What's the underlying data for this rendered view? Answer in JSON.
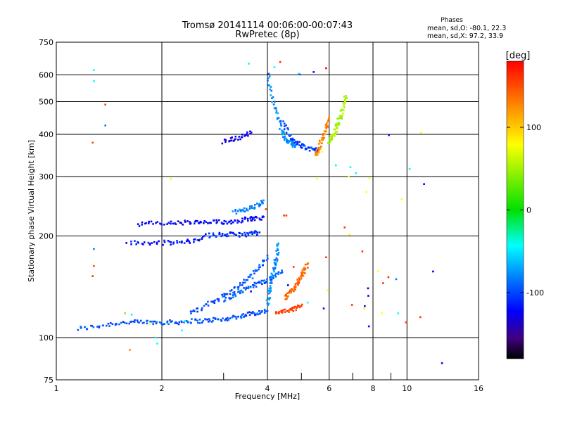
{
  "chart_data": {
    "type": "scatter",
    "title": "Tromsø 20141114 00:06:00-00:07:43",
    "subtitle": "RwPretec (8p)",
    "xlabel": "Frequency [MHz]",
    "ylabel": "Stationary phase Virtual Height [km]",
    "x_scale": "log",
    "y_scale": "log",
    "xlim": [
      1,
      16
    ],
    "ylim": [
      75,
      750
    ],
    "x_ticks": [
      1,
      2,
      4,
      6,
      8,
      10,
      16
    ],
    "x_minor_ticks": [
      3,
      5,
      7,
      9
    ],
    "y_ticks": [
      75,
      100,
      200,
      300,
      400,
      500,
      600,
      750
    ],
    "grid": true,
    "phases": {
      "title": "Phases",
      "line_o": "mean, sd,O: -80.1, 22.3",
      "line_x": "mean, sd,X:  97.2, 33.9"
    },
    "colorbar": {
      "label": "[deg]",
      "range": [
        -180,
        180
      ],
      "ticks": [
        100,
        0,
        -100
      ],
      "colors": [
        "#ff0000",
        "#ff8000",
        "#ffff00",
        "#00e000",
        "#00ffff",
        "#0070ff",
        "#0000ff",
        "#400080",
        "#000000"
      ]
    },
    "traces": [
      {
        "name": "",
        "phase": -75,
        "x": [
          1.15,
          1.3,
          1.45,
          1.6,
          1.75,
          1.9,
          2.05,
          2.2,
          2.4,
          2.6,
          2.8,
          3.0,
          3.2,
          3.4,
          3.6,
          3.8,
          4.0
        ],
        "y": [
          106,
          108,
          110,
          111,
          111,
          111,
          111,
          111,
          112,
          112,
          113,
          113,
          115,
          116,
          118,
          119,
          120
        ]
      },
      {
        "name": "",
        "phase": -75,
        "x": [
          2.4,
          2.6,
          2.8,
          3.0,
          3.2,
          3.4,
          3.6,
          3.8,
          4.0
        ],
        "y": [
          118,
          122,
          128,
          133,
          138,
          145,
          152,
          162,
          175
        ]
      },
      {
        "name": "",
        "phase": -70,
        "x": [
          3.0,
          3.2,
          3.4,
          3.6,
          3.8,
          4.0,
          4.2,
          4.4
        ],
        "y": [
          128,
          133,
          138,
          142,
          145,
          148,
          152,
          158
        ]
      },
      {
        "name": "",
        "phase": -95,
        "x": [
          1.6,
          1.8,
          2.0,
          2.2,
          2.4,
          2.6
        ],
        "y": [
          191,
          190,
          191,
          191,
          193,
          196
        ]
      },
      {
        "name": "",
        "phase": -100,
        "x": [
          1.7,
          1.9,
          2.1,
          2.3,
          2.5,
          2.7,
          2.9,
          3.1,
          3.3,
          3.5,
          3.7,
          3.9
        ],
        "y": [
          217,
          218,
          218,
          219,
          219,
          219,
          220,
          220,
          222,
          225,
          225,
          228
        ]
      },
      {
        "name": "",
        "phase": -85,
        "x": [
          2.6,
          2.8,
          3.0,
          3.2,
          3.4,
          3.6,
          3.8
        ],
        "y": [
          200,
          201,
          202,
          202,
          202,
          203,
          205
        ]
      },
      {
        "name": "",
        "phase": -60,
        "x": [
          3.2,
          3.4,
          3.6,
          3.8,
          3.9
        ],
        "y": [
          235,
          238,
          242,
          248,
          255
        ]
      },
      {
        "name": "",
        "phase": -105,
        "x": [
          3.0,
          3.2,
          3.4,
          3.6
        ],
        "y": [
          380,
          388,
          395,
          405
        ]
      },
      {
        "name": "",
        "phase": -55,
        "x": [
          4.0,
          4.1,
          4.2,
          4.3,
          4.4,
          4.5,
          4.6,
          4.7,
          4.8
        ],
        "y": [
          600,
          540,
          480,
          440,
          410,
          390,
          380,
          375,
          370
        ]
      },
      {
        "name": "",
        "phase": -80,
        "x": [
          4.4,
          4.6,
          4.8,
          5.0,
          5.2,
          5.4,
          5.6
        ],
        "y": [
          440,
          400,
          380,
          370,
          365,
          360,
          360
        ]
      },
      {
        "name": "",
        "phase": 130,
        "x": [
          5.5,
          5.6,
          5.7,
          5.8,
          5.9,
          6.0
        ],
        "y": [
          350,
          360,
          380,
          400,
          420,
          450
        ]
      },
      {
        "name": "",
        "phase": 70,
        "x": [
          6.0,
          6.1,
          6.2,
          6.3,
          6.4,
          6.5,
          6.6,
          6.7
        ],
        "y": [
          380,
          390,
          400,
          420,
          440,
          460,
          490,
          520
        ]
      },
      {
        "name": "",
        "phase": 140,
        "x": [
          4.5,
          4.6,
          4.7,
          4.8,
          4.9,
          5.0,
          5.1,
          5.2
        ],
        "y": [
          130,
          134,
          138,
          142,
          147,
          152,
          158,
          165
        ]
      },
      {
        "name": "",
        "phase": 155,
        "x": [
          4.2,
          4.4,
          4.6,
          4.8,
          5.0
        ],
        "y": [
          118,
          119,
          120,
          122,
          124
        ]
      },
      {
        "name": "",
        "phase": -55,
        "x": [
          4.0,
          4.05,
          4.1,
          4.15,
          4.2,
          4.25,
          4.3
        ],
        "y": [
          125,
          135,
          145,
          155,
          165,
          175,
          190
        ]
      }
    ],
    "scattered_points": {
      "x": [
        1.28,
        1.28,
        1.38,
        1.38,
        1.27,
        1.28,
        1.28,
        1.27,
        1.57,
        1.64,
        1.85,
        1.62,
        1.94,
        1.92,
        2.28,
        2.12,
        2.33,
        4.35,
        4.19,
        3.54,
        4.94,
        5.42,
        5.88,
        4.91,
        5.73,
        6.27,
        6.9,
        7.15,
        6.82,
        5.53,
        7.81,
        7.66,
        8.88,
        9.66,
        10.18,
        10.97,
        11.19,
        12.59,
        11.87,
        9.94,
        8.28,
        8.85,
        9.32,
        8.55,
        7.74,
        7.76,
        7.79,
        7.58,
        10.92,
        9.44,
        8.48,
        7.55,
        5.79,
        6.97,
        5.21,
        5.95,
        4.58,
        3.59,
        4.53,
        4.46,
        3.96,
        6.64,
        6.86,
        7.46,
        5.88,
        4.75
      ],
      "y": [
        620,
        575,
        490,
        425,
        378,
        183,
        163,
        152,
        118,
        117,
        110,
        92,
        96,
        100,
        105,
        295,
        112,
        655,
        632,
        648,
        602,
        612,
        628,
        605,
        355,
        324,
        320,
        307,
        300,
        295,
        296,
        270,
        398,
        257,
        316,
        405,
        285,
        84,
        157,
        111,
        157,
        151,
        149,
        145,
        140,
        133,
        108,
        124,
        115,
        118,
        118,
        122,
        122,
        125,
        127,
        138,
        143,
        137,
        230,
        230,
        240,
        212,
        202,
        180,
        173,
        162
      ],
      "phase": [
        -20,
        -20,
        160,
        -60,
        150,
        -60,
        150,
        160,
        60,
        -20,
        100,
        130,
        -20,
        -20,
        -20,
        100,
        -20,
        160,
        -20,
        -20,
        -100,
        -100,
        180,
        -20,
        100,
        -20,
        -20,
        -20,
        100,
        100,
        100,
        100,
        -100,
        100,
        -20,
        100,
        -100,
        -100,
        -100,
        160,
        100,
        160,
        -60,
        160,
        -100,
        -100,
        -100,
        -100,
        160,
        -20,
        100,
        100,
        -100,
        160,
        -20,
        100,
        -100,
        -100,
        160,
        160,
        160,
        160,
        100,
        160,
        160,
        160
      ]
    }
  }
}
